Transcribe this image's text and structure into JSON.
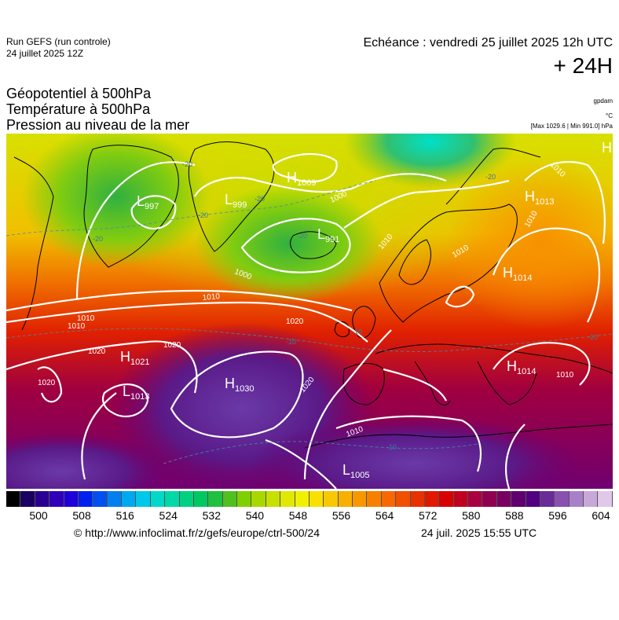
{
  "header": {
    "run_name": "Run GEFS (run controle)",
    "run_date": "24 juillet 2025 12Z",
    "valid_time": "Echéance : vendredi 25 juillet 2025 12h UTC",
    "forecast_step": "+ 24H"
  },
  "titles": {
    "line1": "Géopotentiel à 500hPa",
    "line2": "Température à 500hPa",
    "line3": "Pression au niveau de la mer"
  },
  "units": {
    "geopotential": "gpdam",
    "temperature": "°C",
    "pressure_range": "[Max 1029.6 | Min 991.0] hPa"
  },
  "pressure_centers": [
    {
      "type": "H",
      "value": "1009"
    },
    {
      "type": "L",
      "value": "997"
    },
    {
      "type": "L",
      "value": "999"
    },
    {
      "type": "L",
      "value": "991"
    },
    {
      "type": "H",
      "value": "1013"
    },
    {
      "type": "H",
      "value": "1014"
    },
    {
      "type": "H",
      "value": "1021"
    },
    {
      "type": "L",
      "value": "1013"
    },
    {
      "type": "H",
      "value": "1030"
    },
    {
      "type": "H",
      "value": "1014"
    },
    {
      "type": "L",
      "value": "1005"
    },
    {
      "type": "H",
      "value": ""
    }
  ],
  "isobar_labels": [
    "1000",
    "1000",
    "1010",
    "1010",
    "1010",
    "1010",
    "1010",
    "1010",
    "1020",
    "1020",
    "1020",
    "1020",
    "1020",
    "1010",
    "1010",
    "1010"
  ],
  "isotherm_labels": [
    "-20",
    "-20",
    "-20",
    "-20",
    "-20",
    "-20",
    "-10",
    "-10",
    "-10",
    "-10"
  ],
  "legend": {
    "tick_labels": [
      "500",
      "508",
      "516",
      "524",
      "532",
      "540",
      "548",
      "556",
      "564",
      "572",
      "580",
      "588",
      "596",
      "604"
    ],
    "colors": [
      "#000000",
      "#1a0060",
      "#2a0090",
      "#3000b8",
      "#2000d8",
      "#0020f0",
      "#0050f0",
      "#0080f0",
      "#00a8f0",
      "#00c8e8",
      "#00d8c8",
      "#00d8a8",
      "#00d080",
      "#00c860",
      "#20c040",
      "#50c020",
      "#80d000",
      "#a8d800",
      "#c8e000",
      "#e0e800",
      "#f0f000",
      "#f8e000",
      "#f8c800",
      "#f8b000",
      "#f89800",
      "#f88000",
      "#f86800",
      "#f05000",
      "#e83000",
      "#e01800",
      "#d80000",
      "#c00020",
      "#a80040",
      "#900050",
      "#780060",
      "#600070",
      "#500080",
      "#6a2a98",
      "#8a50b0",
      "#a880c8",
      "#c8a8d8",
      "#e0c8e8"
    ]
  },
  "footer": {
    "credit": "© http://www.infoclimat.fr/z/gefs/europe/ctrl-500/24",
    "generated": "24 juil. 2025 15:55 UTC"
  }
}
